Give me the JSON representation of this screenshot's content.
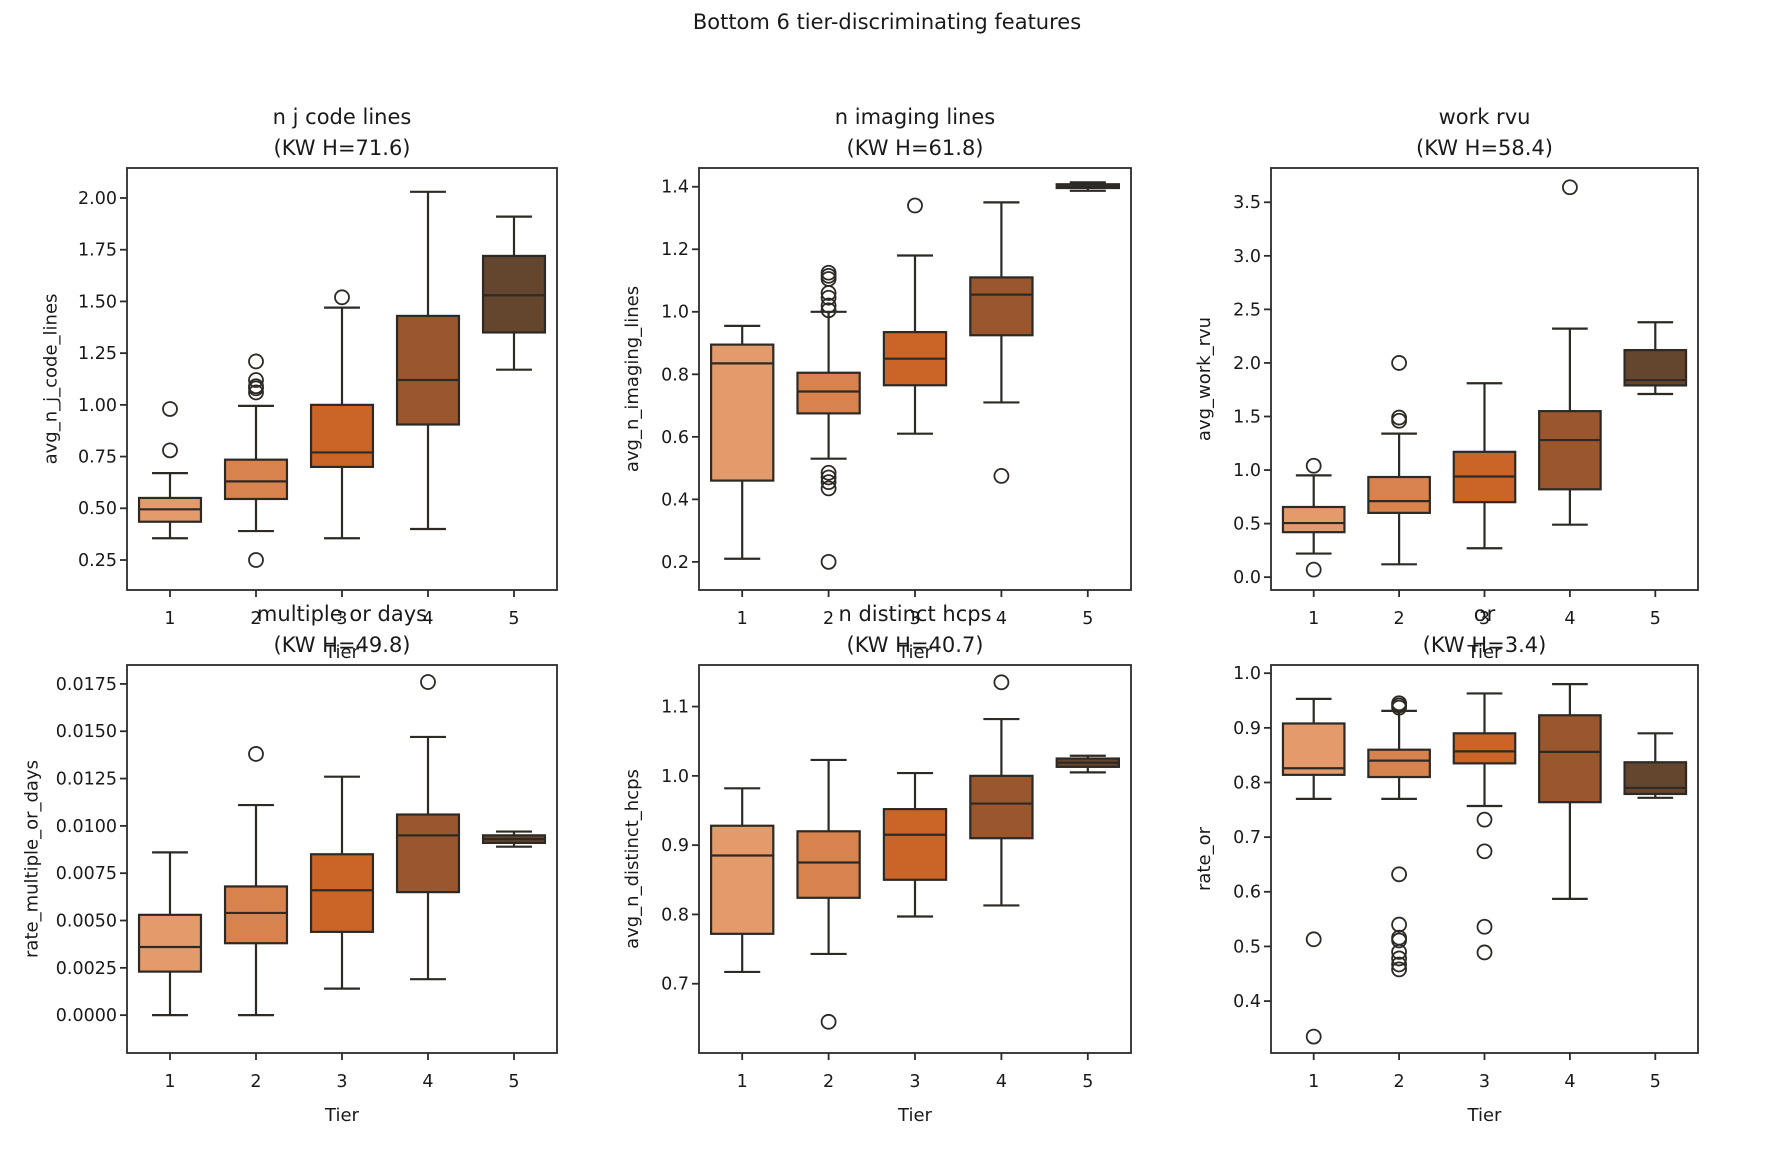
{
  "figure": {
    "title": "Bottom 6 tier-discriminating features",
    "background": "#ffffff"
  },
  "palette": {
    "tier_colors": [
      "#E49B6C",
      "#D8834E",
      "#CB6527",
      "#9A562C",
      "#64452E"
    ],
    "edge_color": "#2d2a26",
    "spine_color": "#2b2b2b",
    "text_color": "#1a1a1a"
  },
  "chart_data": [
    {
      "type": "box",
      "slug": "n-j-code-lines",
      "title": "n j code lines",
      "subtitle": "(KW H=71.6)",
      "xlabel": "Tier",
      "ylabel": "avg_n_j_code_lines",
      "categories": [
        "1",
        "2",
        "3",
        "4",
        "5"
      ],
      "ylim": [
        0.105,
        2.145
      ],
      "yticks": [
        0.25,
        0.5,
        0.75,
        1.0,
        1.25,
        1.5,
        1.75,
        2.0
      ],
      "ytick_labels": [
        "0.25",
        "0.50",
        "0.75",
        "1.00",
        "1.25",
        "1.50",
        "1.75",
        "2.00"
      ],
      "boxes": [
        {
          "tier": "1",
          "whisker_low": 0.355,
          "q1": 0.435,
          "median": 0.495,
          "q3": 0.55,
          "whisker_high": 0.67,
          "outliers": [
            0.78,
            0.98
          ]
        },
        {
          "tier": "2",
          "whisker_low": 0.39,
          "q1": 0.545,
          "median": 0.63,
          "q3": 0.735,
          "whisker_high": 0.995,
          "outliers": [
            0.25,
            1.06,
            1.08,
            1.09,
            1.12,
            1.21
          ]
        },
        {
          "tier": "3",
          "whisker_low": 0.355,
          "q1": 0.7,
          "median": 0.77,
          "q3": 1.0,
          "whisker_high": 1.47,
          "outliers": [
            1.52
          ]
        },
        {
          "tier": "4",
          "whisker_low": 0.4,
          "q1": 0.905,
          "median": 1.12,
          "q3": 1.43,
          "whisker_high": 2.03,
          "outliers": []
        },
        {
          "tier": "5",
          "whisker_low": 1.17,
          "q1": 1.35,
          "median": 1.53,
          "q3": 1.72,
          "whisker_high": 1.91,
          "outliers": []
        }
      ]
    },
    {
      "type": "box",
      "slug": "n-imaging-lines",
      "title": "n imaging lines",
      "subtitle": "(KW H=61.8)",
      "xlabel": "Tier",
      "ylabel": "avg_n_imaging_lines",
      "categories": [
        "1",
        "2",
        "3",
        "4",
        "5"
      ],
      "ylim": [
        0.11,
        1.46
      ],
      "yticks": [
        0.2,
        0.4,
        0.6,
        0.8,
        1.0,
        1.2,
        1.4
      ],
      "ytick_labels": [
        "0.2",
        "0.4",
        "0.6",
        "0.8",
        "1.0",
        "1.2",
        "1.4"
      ],
      "boxes": [
        {
          "tier": "1",
          "whisker_low": 0.21,
          "q1": 0.46,
          "median": 0.835,
          "q3": 0.895,
          "whisker_high": 0.955,
          "outliers": []
        },
        {
          "tier": "2",
          "whisker_low": 0.53,
          "q1": 0.675,
          "median": 0.745,
          "q3": 0.805,
          "whisker_high": 1.0,
          "outliers": [
            0.2,
            0.435,
            0.455,
            0.47,
            0.485,
            1.005,
            1.02,
            1.045,
            1.06,
            1.105,
            1.115,
            1.125
          ]
        },
        {
          "tier": "3",
          "whisker_low": 0.61,
          "q1": 0.765,
          "median": 0.85,
          "q3": 0.935,
          "whisker_high": 1.18,
          "outliers": [
            1.34
          ]
        },
        {
          "tier": "4",
          "whisker_low": 0.71,
          "q1": 0.925,
          "median": 1.055,
          "q3": 1.11,
          "whisker_high": 1.35,
          "outliers": [
            0.475
          ]
        },
        {
          "tier": "5",
          "whisker_low": 1.387,
          "q1": 1.396,
          "median": 1.401,
          "q3": 1.408,
          "whisker_high": 1.414,
          "outliers": []
        }
      ]
    },
    {
      "type": "box",
      "slug": "work-rvu",
      "title": "work rvu",
      "subtitle": "(KW H=58.4)",
      "xlabel": "Tier",
      "ylabel": "avg_work_rvu",
      "categories": [
        "1",
        "2",
        "3",
        "4",
        "5"
      ],
      "ylim": [
        -0.12,
        3.82
      ],
      "yticks": [
        0.0,
        0.5,
        1.0,
        1.5,
        2.0,
        2.5,
        3.0,
        3.5
      ],
      "ytick_labels": [
        "0.0",
        "0.5",
        "1.0",
        "1.5",
        "2.0",
        "2.5",
        "3.0",
        "3.5"
      ],
      "boxes": [
        {
          "tier": "1",
          "whisker_low": 0.22,
          "q1": 0.42,
          "median": 0.505,
          "q3": 0.655,
          "whisker_high": 0.95,
          "outliers": [
            0.07,
            1.04
          ]
        },
        {
          "tier": "2",
          "whisker_low": 0.12,
          "q1": 0.6,
          "median": 0.71,
          "q3": 0.935,
          "whisker_high": 1.34,
          "outliers": [
            1.46,
            1.49,
            2.0
          ]
        },
        {
          "tier": "3",
          "whisker_low": 0.27,
          "q1": 0.7,
          "median": 0.94,
          "q3": 1.17,
          "whisker_high": 1.81,
          "outliers": []
        },
        {
          "tier": "4",
          "whisker_low": 0.49,
          "q1": 0.82,
          "median": 1.28,
          "q3": 1.55,
          "whisker_high": 2.32,
          "outliers": [
            3.64
          ]
        },
        {
          "tier": "5",
          "whisker_low": 1.71,
          "q1": 1.79,
          "median": 1.84,
          "q3": 2.12,
          "whisker_high": 2.38,
          "outliers": []
        }
      ]
    },
    {
      "type": "box",
      "slug": "multiple-or-days",
      "title": "multiple or days",
      "subtitle": "(KW H=49.8)",
      "xlabel": "Tier",
      "ylabel": "rate_multiple_or_days",
      "categories": [
        "1",
        "2",
        "3",
        "4",
        "5"
      ],
      "ylim": [
        -0.002,
        0.0185
      ],
      "yticks": [
        0.0,
        0.0025,
        0.005,
        0.0075,
        0.01,
        0.0125,
        0.015,
        0.0175
      ],
      "ytick_labels": [
        "0.0000",
        "0.0025",
        "0.0050",
        "0.0075",
        "0.0100",
        "0.0125",
        "0.0150",
        "0.0175"
      ],
      "boxes": [
        {
          "tier": "1",
          "whisker_low": 0.0,
          "q1": 0.0023,
          "median": 0.0036,
          "q3": 0.0053,
          "whisker_high": 0.0086,
          "outliers": []
        },
        {
          "tier": "2",
          "whisker_low": 0.0,
          "q1": 0.0038,
          "median": 0.0054,
          "q3": 0.0068,
          "whisker_high": 0.0111,
          "outliers": [
            0.0138
          ]
        },
        {
          "tier": "3",
          "whisker_low": 0.0014,
          "q1": 0.0044,
          "median": 0.0066,
          "q3": 0.0085,
          "whisker_high": 0.0126,
          "outliers": []
        },
        {
          "tier": "4",
          "whisker_low": 0.0019,
          "q1": 0.0065,
          "median": 0.0095,
          "q3": 0.0106,
          "whisker_high": 0.0147,
          "outliers": [
            0.0176
          ]
        },
        {
          "tier": "5",
          "whisker_low": 0.0089,
          "q1": 0.0091,
          "median": 0.0093,
          "q3": 0.0095,
          "whisker_high": 0.0097,
          "outliers": []
        }
      ]
    },
    {
      "type": "box",
      "slug": "n-distinct-hcps",
      "title": "n distinct hcps",
      "subtitle": "(KW H=40.7)",
      "xlabel": "Tier",
      "ylabel": "avg_n_distinct_hcps",
      "categories": [
        "1",
        "2",
        "3",
        "4",
        "5"
      ],
      "ylim": [
        0.6,
        1.16
      ],
      "yticks": [
        0.7,
        0.8,
        0.9,
        1.0,
        1.1
      ],
      "ytick_labels": [
        "0.7",
        "0.8",
        "0.9",
        "1.0",
        "1.1"
      ],
      "boxes": [
        {
          "tier": "1",
          "whisker_low": 0.717,
          "q1": 0.772,
          "median": 0.885,
          "q3": 0.928,
          "whisker_high": 0.982,
          "outliers": []
        },
        {
          "tier": "2",
          "whisker_low": 0.743,
          "q1": 0.824,
          "median": 0.875,
          "q3": 0.92,
          "whisker_high": 1.023,
          "outliers": [
            0.645
          ]
        },
        {
          "tier": "3",
          "whisker_low": 0.797,
          "q1": 0.85,
          "median": 0.915,
          "q3": 0.952,
          "whisker_high": 1.004,
          "outliers": []
        },
        {
          "tier": "4",
          "whisker_low": 0.813,
          "q1": 0.91,
          "median": 0.96,
          "q3": 1.0,
          "whisker_high": 1.082,
          "outliers": [
            1.135
          ]
        },
        {
          "tier": "5",
          "whisker_low": 1.005,
          "q1": 1.013,
          "median": 1.019,
          "q3": 1.025,
          "whisker_high": 1.029,
          "outliers": []
        }
      ]
    },
    {
      "type": "box",
      "slug": "or",
      "title": "or",
      "subtitle": "(KW H=3.4)",
      "xlabel": "Tier",
      "ylabel": "rate_or",
      "categories": [
        "1",
        "2",
        "3",
        "4",
        "5"
      ],
      "ylim": [
        0.305,
        1.015
      ],
      "yticks": [
        0.4,
        0.5,
        0.6,
        0.7,
        0.8,
        0.9,
        1.0
      ],
      "ytick_labels": [
        "0.4",
        "0.5",
        "0.6",
        "0.7",
        "0.8",
        "0.9",
        "1.0"
      ],
      "boxes": [
        {
          "tier": "1",
          "whisker_low": 0.77,
          "q1": 0.814,
          "median": 0.826,
          "q3": 0.908,
          "whisker_high": 0.953,
          "outliers": [
            0.513,
            0.335
          ]
        },
        {
          "tier": "2",
          "whisker_low": 0.77,
          "q1": 0.81,
          "median": 0.84,
          "q3": 0.86,
          "whisker_high": 0.931,
          "outliers": [
            0.937,
            0.941,
            0.945,
            0.632,
            0.54,
            0.516,
            0.511,
            0.49,
            0.478,
            0.467,
            0.458
          ]
        },
        {
          "tier": "3",
          "whisker_low": 0.757,
          "q1": 0.835,
          "median": 0.857,
          "q3": 0.89,
          "whisker_high": 0.963,
          "outliers": [
            0.732,
            0.674,
            0.536,
            0.489
          ]
        },
        {
          "tier": "4",
          "whisker_low": 0.587,
          "q1": 0.764,
          "median": 0.856,
          "q3": 0.923,
          "whisker_high": 0.98,
          "outliers": []
        },
        {
          "tier": "5",
          "whisker_low": 0.772,
          "q1": 0.779,
          "median": 0.79,
          "q3": 0.837,
          "whisker_high": 0.89,
          "outliers": []
        }
      ]
    }
  ]
}
